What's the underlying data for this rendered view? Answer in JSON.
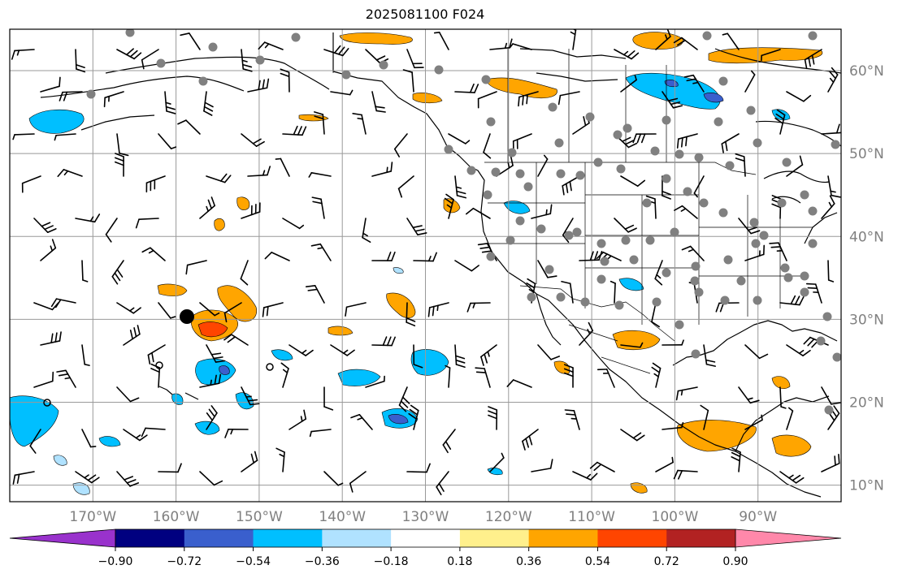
{
  "title": "2025081100 F024",
  "map": {
    "lon_range": [
      -180,
      -80
    ],
    "lat_range": [
      8,
      65
    ],
    "lon_ticks": [
      {
        "value": -170,
        "label": "170°W"
      },
      {
        "value": -160,
        "label": "160°W"
      },
      {
        "value": -150,
        "label": "150°W"
      },
      {
        "value": -140,
        "label": "140°W"
      },
      {
        "value": -130,
        "label": "130°W"
      },
      {
        "value": -120,
        "label": "120°W"
      },
      {
        "value": -110,
        "label": "110°W"
      },
      {
        "value": -100,
        "label": "100°W"
      },
      {
        "value": -90,
        "label": "90°W"
      }
    ],
    "lat_ticks": [
      {
        "value": 10,
        "label": "10°N"
      },
      {
        "value": 20,
        "label": "20°N"
      },
      {
        "value": 30,
        "label": "30°N"
      },
      {
        "value": 40,
        "label": "40°N"
      },
      {
        "value": 50,
        "label": "50°N"
      },
      {
        "value": 60,
        "label": "60°N"
      }
    ],
    "grid": true,
    "colors": {
      "coast": "#000000",
      "grid": "#999999",
      "station_dot": "#808080"
    }
  },
  "colorbar": {
    "levels": [
      "−0.90",
      "−0.72",
      "−0.54",
      "−0.36",
      "−0.18",
      "0.18",
      "0.36",
      "0.54",
      "0.72",
      "0.90"
    ],
    "colors": [
      "#9932cc",
      "#000080",
      "#3a5fcd",
      "#00bfff",
      "#b0e2ff",
      "#ffffff",
      "#fff08c",
      "#ffa500",
      "#ff4500",
      "#b22222",
      "#ff88aa"
    ],
    "extend": "both"
  }
}
